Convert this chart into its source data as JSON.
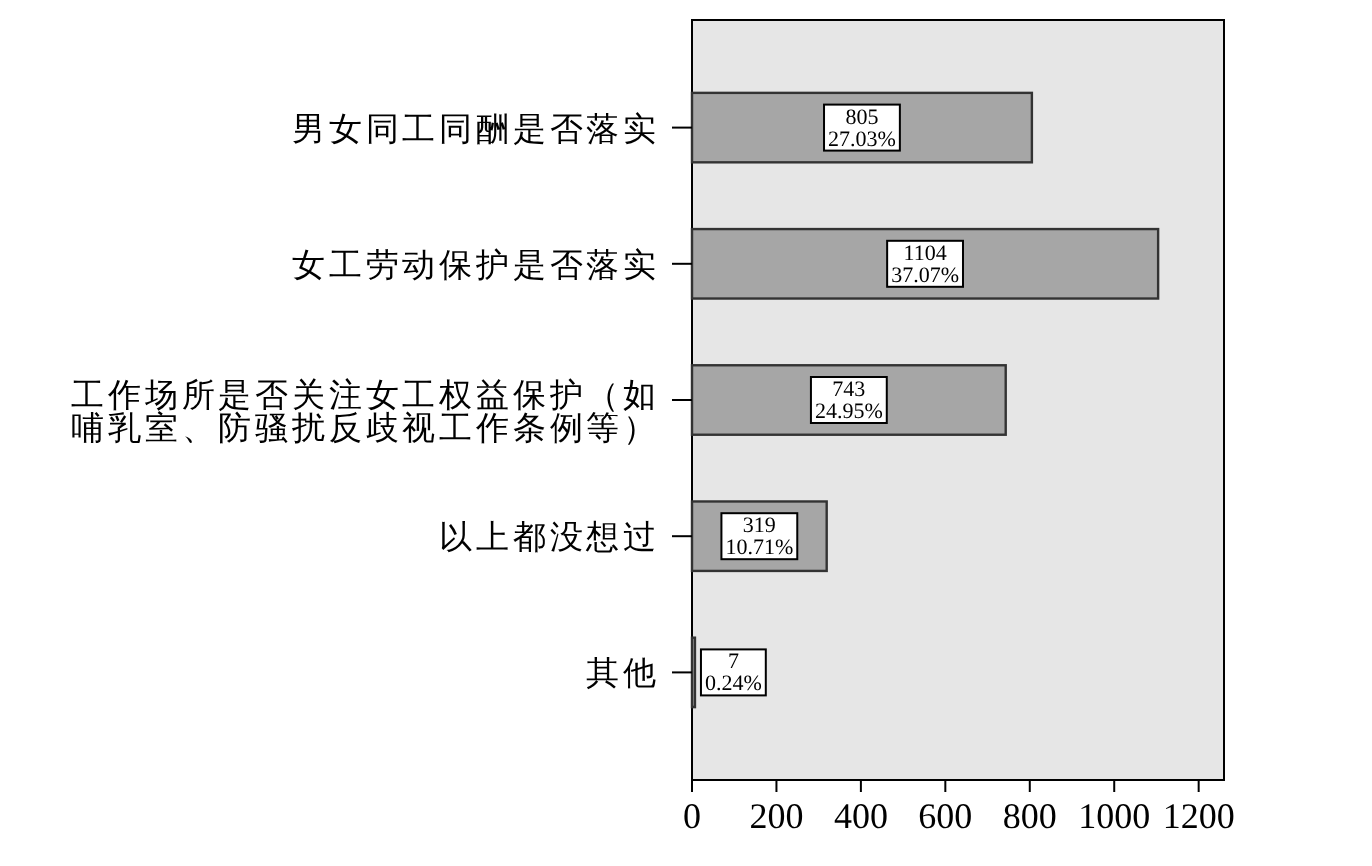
{
  "chart_data": {
    "type": "bar",
    "orientation": "horizontal",
    "categories": [
      "男女同工同酬是否落实",
      "女工劳动保护是否落实",
      "工作场所是否关注女工权益保护（如哺乳室、防骚扰反歧视工作条例等）",
      "以上都没想过",
      "其他"
    ],
    "values": [
      805,
      1104,
      743,
      319,
      7
    ],
    "value_labels": [
      "805\n27.03%",
      "1104\n37.07%",
      "743\n24.95%",
      "319\n10.71%",
      "7\n0.24%"
    ],
    "color": "#a6a6a6",
    "xlim": [
      0,
      1260
    ],
    "xticks": [
      0,
      200,
      400,
      600,
      800,
      1000,
      1200
    ]
  }
}
